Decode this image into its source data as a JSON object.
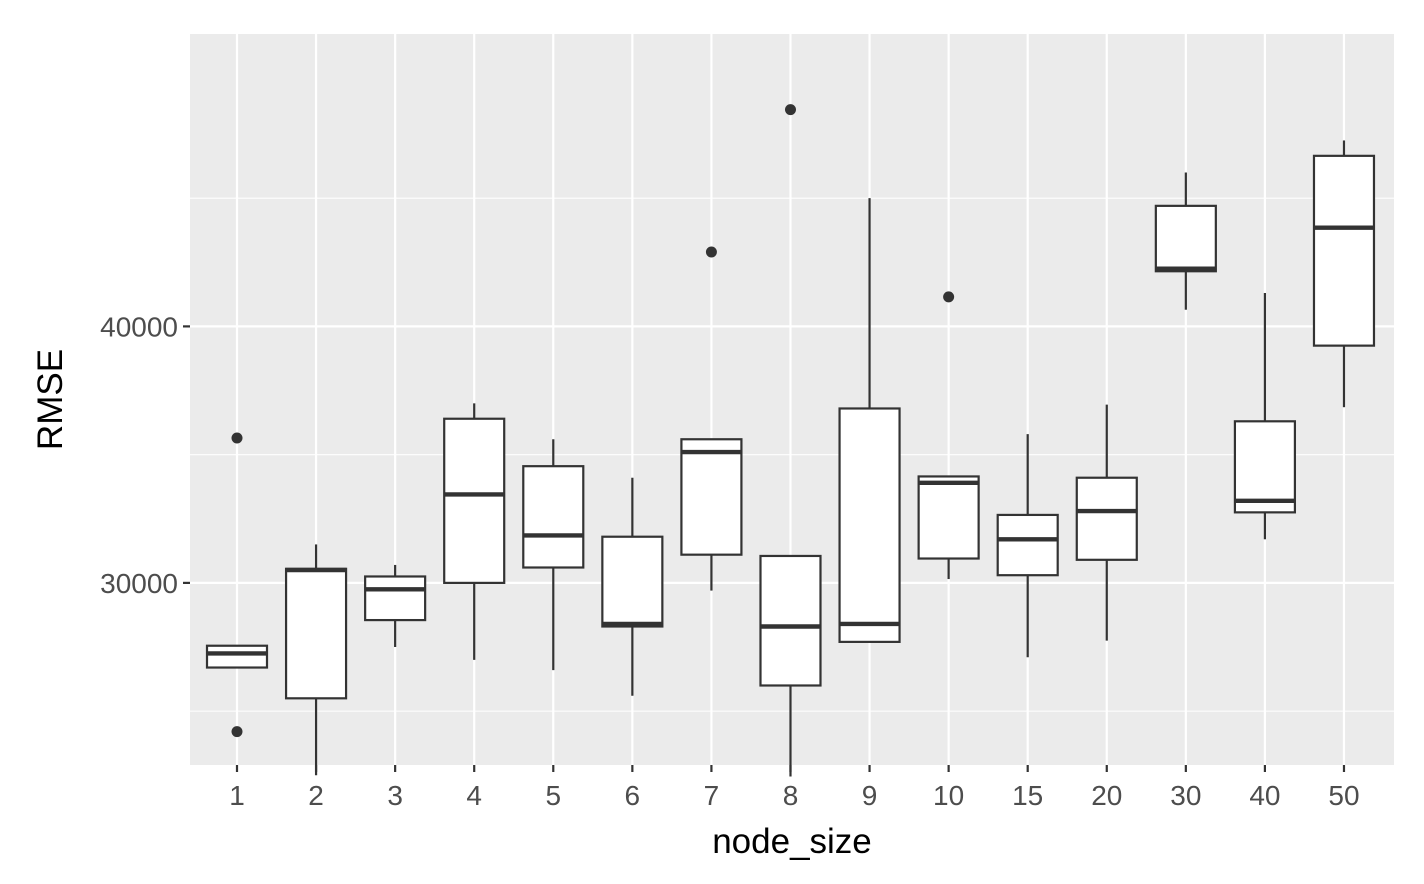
{
  "chart_data": {
    "type": "boxplot",
    "xlabel": "node_size",
    "ylabel": "RMSE",
    "categories": [
      "1",
      "2",
      "3",
      "4",
      "5",
      "6",
      "7",
      "8",
      "9",
      "10",
      "15",
      "20",
      "30",
      "40",
      "50"
    ],
    "ylim": [
      22900,
      51400
    ],
    "y_ticks": [
      30000,
      40000
    ],
    "y_tick_labels": [
      "30000",
      "40000"
    ],
    "grid": true,
    "legend": "none",
    "boxes": [
      {
        "category": "1",
        "lower_whisker": 26700,
        "q1": 26700,
        "median": 27250,
        "q3": 27550,
        "upper_whisker": 27550,
        "outliers": [
          24200,
          35650
        ]
      },
      {
        "category": "2",
        "lower_whisker": 22500,
        "q1": 25500,
        "median": 30500,
        "q3": 30550,
        "upper_whisker": 31500,
        "outliers": []
      },
      {
        "category": "3",
        "lower_whisker": 27500,
        "q1": 28550,
        "median": 29750,
        "q3": 30250,
        "upper_whisker": 30700,
        "outliers": []
      },
      {
        "category": "4",
        "lower_whisker": 27000,
        "q1": 30000,
        "median": 33450,
        "q3": 36400,
        "upper_whisker": 37000,
        "outliers": []
      },
      {
        "category": "5",
        "lower_whisker": 26600,
        "q1": 30600,
        "median": 31850,
        "q3": 34550,
        "upper_whisker": 35600,
        "outliers": []
      },
      {
        "category": "6",
        "lower_whisker": 25600,
        "q1": 28300,
        "median": 28400,
        "q3": 31800,
        "upper_whisker": 34100,
        "outliers": []
      },
      {
        "category": "7",
        "lower_whisker": 29700,
        "q1": 31100,
        "median": 35100,
        "q3": 35600,
        "upper_whisker": 35600,
        "outliers": [
          42900
        ]
      },
      {
        "category": "8",
        "lower_whisker": 22450,
        "q1": 26000,
        "median": 28300,
        "q3": 31050,
        "upper_whisker": 31050,
        "outliers": [
          48450
        ]
      },
      {
        "category": "9",
        "lower_whisker": 27700,
        "q1": 27700,
        "median": 28400,
        "q3": 36800,
        "upper_whisker": 45000,
        "outliers": []
      },
      {
        "category": "10",
        "lower_whisker": 30150,
        "q1": 30950,
        "median": 33900,
        "q3": 34150,
        "upper_whisker": 34150,
        "outliers": [
          41150
        ]
      },
      {
        "category": "15",
        "lower_whisker": 27100,
        "q1": 30300,
        "median": 31700,
        "q3": 32650,
        "upper_whisker": 35800,
        "outliers": []
      },
      {
        "category": "20",
        "lower_whisker": 27750,
        "q1": 30900,
        "median": 32800,
        "q3": 34100,
        "upper_whisker": 36950,
        "outliers": []
      },
      {
        "category": "30",
        "lower_whisker": 40650,
        "q1": 42150,
        "median": 42250,
        "q3": 44700,
        "upper_whisker": 46000,
        "outliers": []
      },
      {
        "category": "40",
        "lower_whisker": 31700,
        "q1": 32750,
        "median": 33200,
        "q3": 36300,
        "upper_whisker": 41300,
        "outliers": []
      },
      {
        "category": "50",
        "lower_whisker": 36850,
        "q1": 39250,
        "median": 43850,
        "q3": 46650,
        "upper_whisker": 47250,
        "outliers": []
      }
    ]
  },
  "style": {
    "panel_background": "#ebebeb",
    "grid_major": "#ffffff",
    "box_fill": "#ffffff",
    "box_stroke": "#333333",
    "outlier_color": "#333333",
    "tick_mark": "#333333",
    "tick_text": "#4d4d4d",
    "title_text": "#000000"
  }
}
